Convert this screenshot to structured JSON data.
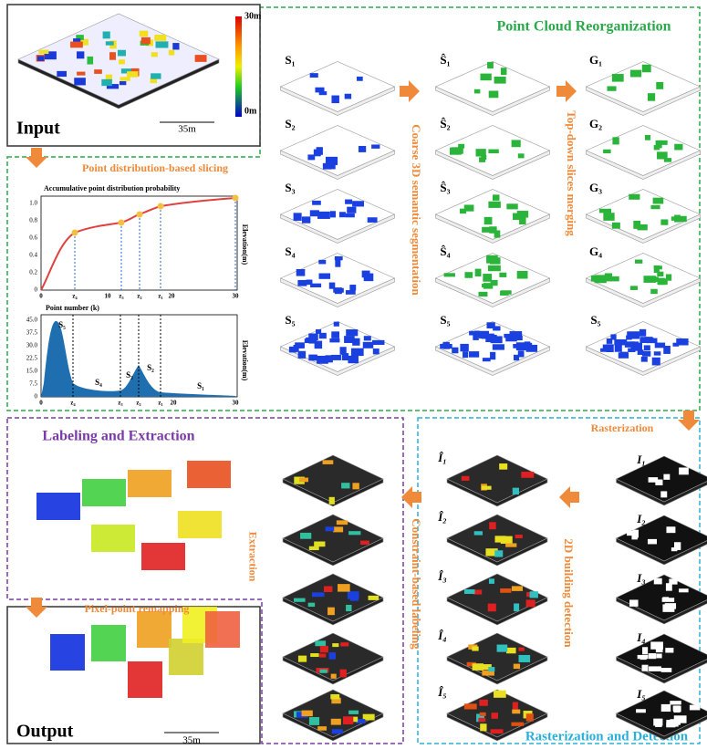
{
  "input": {
    "label": "Input",
    "scale": "35m",
    "colorbar_max": "30m",
    "colorbar_min": "0m"
  },
  "slicing": {
    "title": "Point distribution-based slicing",
    "cdf": {
      "title": "Accumulative point distribution probability",
      "axis_label": "Elevation(m)",
      "yticks": [
        "0",
        "0.2",
        "0.4",
        "0.6",
        "0.8",
        "1.0"
      ],
      "xticks": [
        "0",
        "z₄",
        "10",
        "z₃",
        "z₂",
        "z₁",
        "20",
        "30"
      ]
    },
    "histogram": {
      "title": "Point number (k)",
      "axis_label": "Elevation(m)",
      "yticks": [
        "0",
        "7.5",
        "15.0",
        "22.5",
        "30.0",
        "37.5",
        "45.0"
      ],
      "xticks": [
        "0",
        "z₄",
        "z₃",
        "z₂",
        "z₁",
        "10",
        "20",
        "30"
      ],
      "slice_labels": [
        "S₅",
        "S₄",
        "S₃",
        "S₂",
        "S₁"
      ]
    }
  },
  "reorganization": {
    "title": "Point Cloud Reorganization",
    "slices": [
      "S₁",
      "S₂",
      "S₃",
      "S₄",
      "S₅"
    ],
    "semantic": [
      "Ŝ₁",
      "Ŝ₂",
      "Ŝ₃",
      "Ŝ₄",
      "S₅"
    ],
    "merged": [
      "G₁",
      "G₂",
      "G₃",
      "G₄",
      "S₅"
    ],
    "step1": "Coarse 3D semantic segmentation",
    "step2": "Top-down slices merging"
  },
  "rasterization": {
    "title": "Rasterization and Detection",
    "step": "Rasterization",
    "images": [
      "I₁",
      "I₂",
      "I₃",
      "I₄",
      "I₅"
    ],
    "detections": [
      "Î₁",
      "Î₂",
      "Î₃",
      "Î₄",
      "Î₅"
    ],
    "step2": "2D building detection"
  },
  "labeling": {
    "title": "Labeling and Extraction",
    "step": "Constraint-based labeling",
    "step2": "Extraction",
    "remap": "Pixel-point remapping"
  },
  "output": {
    "label": "Output",
    "scale": "35m"
  }
}
